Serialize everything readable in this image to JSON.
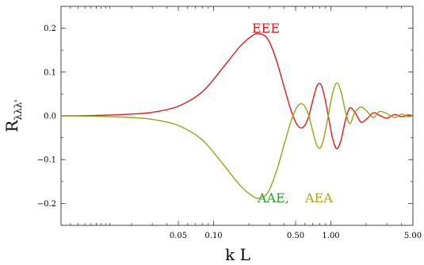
{
  "chart_data": {
    "type": "line",
    "xscale": "log",
    "xlim": [
      0.005,
      5.0
    ],
    "ylim": [
      -0.25,
      0.25
    ],
    "grid": false,
    "xlabel": "k L",
    "ylabel_main": "R",
    "ylabel_sub": "λλλ'",
    "x_ticks": [
      {
        "value": 0.05,
        "label": "0.05"
      },
      {
        "value": 0.1,
        "label": "0.10"
      },
      {
        "value": 0.5,
        "label": "0.50"
      },
      {
        "value": 1.0,
        "label": "1.00"
      },
      {
        "value": 5.0,
        "label": "5.00"
      }
    ],
    "y_ticks": [
      {
        "value": 0.2,
        "label": "0.2"
      },
      {
        "value": 0.1,
        "label": "0.1"
      },
      {
        "value": 0.0,
        "label": "0.0"
      },
      {
        "value": -0.1,
        "label": "−0.1"
      },
      {
        "value": -0.2,
        "label": "−0.2"
      }
    ],
    "annotations": [
      {
        "text": "EEE",
        "color": "#e31a1c"
      },
      {
        "text": "AAE,",
        "color": "#2ca02c"
      },
      {
        "text": "AEA",
        "color": "#a8a815"
      }
    ],
    "series": [
      {
        "color": "#e31a1c",
        "x": [
          0.005,
          0.01,
          0.02,
          0.03,
          0.05,
          0.08,
          0.12,
          0.17,
          0.22,
          0.25,
          0.29,
          0.34,
          0.4,
          0.46,
          0.52,
          0.58,
          0.64,
          0.7,
          0.76,
          0.82,
          0.88,
          0.95,
          1.03,
          1.12,
          1.22,
          1.33,
          1.45,
          1.6,
          1.8,
          2.0,
          2.3,
          2.6,
          3.0,
          3.5,
          4.0,
          4.5,
          5.0
        ],
        "y": [
          0.0,
          0.001,
          0.004,
          0.008,
          0.022,
          0.055,
          0.11,
          0.16,
          0.185,
          0.187,
          0.175,
          0.13,
          0.065,
          0.01,
          -0.022,
          -0.026,
          -0.005,
          0.035,
          0.068,
          0.072,
          0.045,
          0.0,
          -0.05,
          -0.075,
          -0.055,
          -0.01,
          0.018,
          0.008,
          -0.014,
          -0.008,
          0.007,
          0.001,
          -0.005,
          0.003,
          -0.002,
          0.002,
          0.0
        ]
      },
      {
        "color": "#8fa814",
        "x": [
          0.005,
          0.01,
          0.02,
          0.03,
          0.05,
          0.08,
          0.12,
          0.17,
          0.22,
          0.25,
          0.29,
          0.34,
          0.4,
          0.46,
          0.52,
          0.58,
          0.64,
          0.7,
          0.76,
          0.82,
          0.88,
          0.95,
          1.03,
          1.12,
          1.22,
          1.33,
          1.45,
          1.6,
          1.8,
          2.0,
          2.3,
          2.6,
          3.0,
          3.5,
          4.0,
          4.5,
          5.0
        ],
        "y": [
          0.0,
          -0.001,
          -0.004,
          -0.008,
          -0.022,
          -0.055,
          -0.11,
          -0.16,
          -0.185,
          -0.187,
          -0.175,
          -0.13,
          -0.065,
          -0.01,
          0.022,
          0.026,
          0.005,
          -0.035,
          -0.068,
          -0.072,
          -0.045,
          0.0,
          0.05,
          0.075,
          0.055,
          0.01,
          -0.018,
          0.008,
          0.02,
          0.012,
          -0.004,
          0.01,
          0.005,
          -0.004,
          0.004,
          -0.002,
          0.0
        ]
      }
    ]
  }
}
